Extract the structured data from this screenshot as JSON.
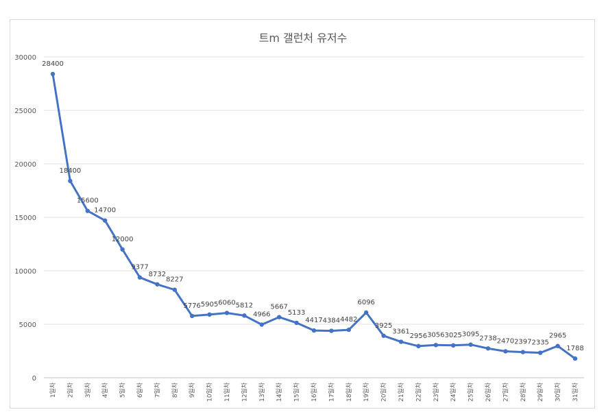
{
  "chart_data": {
    "type": "line",
    "title": "트m 갤런처 유저수",
    "xlabel": "",
    "ylabel": "",
    "ylim": [
      0,
      30000
    ],
    "yticks": [
      0,
      5000,
      10000,
      15000,
      20000,
      25000,
      30000
    ],
    "grid": true,
    "legend": "none",
    "color": "#4472c4",
    "categories": [
      "1일차",
      "2일차",
      "3일차",
      "4일차",
      "5일차",
      "6일차",
      "7일차",
      "8일차",
      "9일차",
      "10일차",
      "11일차",
      "12일차",
      "13일차",
      "14일차",
      "15일차",
      "16일차",
      "17일차",
      "18일차",
      "19일차",
      "20일차",
      "21일차",
      "22일차",
      "23일차",
      "24일차",
      "25일차",
      "26일차",
      "27일차",
      "28일차",
      "29일차",
      "30일차",
      "31일차"
    ],
    "values": [
      28400,
      18400,
      15600,
      14700,
      12000,
      9377,
      8732,
      8227,
      5776,
      5905,
      6060,
      5812,
      4966,
      5667,
      5133,
      4417,
      4384,
      4482,
      6096,
      3925,
      3361,
      2956,
      3056,
      3025,
      3095,
      2738,
      2470,
      2397,
      2335,
      2965,
      1788
    ]
  }
}
